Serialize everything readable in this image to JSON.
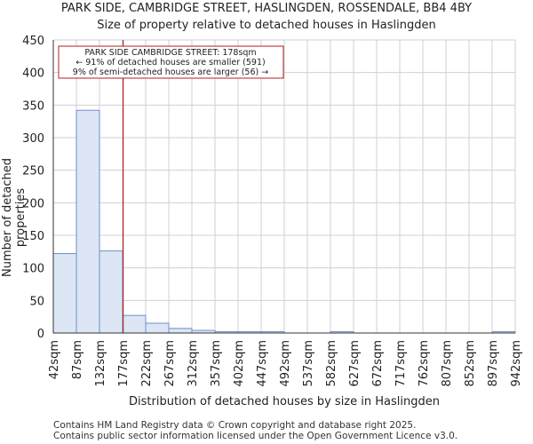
{
  "chart_data": {
    "type": "bar",
    "title": "PARK SIDE, CAMBRIDGE STREET, HASLINGDEN, ROSSENDALE, BB4 4BY",
    "subtitle": "Size of property relative to detached houses in Haslingden",
    "xlabel": "Distribution of detached houses by size in Haslingden",
    "ylabel": "Number of detached properties",
    "ylim": [
      0,
      450
    ],
    "yticks": [
      0,
      50,
      100,
      150,
      200,
      250,
      300,
      350,
      400,
      450
    ],
    "xtick_labels": [
      "42sqm",
      "87sqm",
      "132sqm",
      "177sqm",
      "222sqm",
      "267sqm",
      "312sqm",
      "357sqm",
      "402sqm",
      "447sqm",
      "492sqm",
      "537sqm",
      "582sqm",
      "627sqm",
      "672sqm",
      "717sqm",
      "762sqm",
      "807sqm",
      "852sqm",
      "897sqm",
      "942sqm"
    ],
    "bin_edges": [
      42,
      87,
      132,
      177,
      222,
      267,
      312,
      357,
      402,
      447,
      492,
      537,
      582,
      627,
      672,
      717,
      762,
      807,
      852,
      897,
      942
    ],
    "values": [
      122,
      342,
      126,
      27,
      15,
      7,
      4,
      2,
      2,
      2,
      0,
      0,
      2,
      0,
      0,
      0,
      0,
      0,
      0,
      2
    ],
    "marker_value": 178,
    "annotation": {
      "line1": "PARK SIDE CAMBRIDGE STREET: 178sqm",
      "line2": "← 91% of detached houses are smaller (591)",
      "line3": "9% of semi-detached houses are larger (56) →"
    },
    "colors": {
      "bar_fill": "#dce6f5",
      "bar_stroke": "#6f8fc7",
      "grid": "#d0d0d0",
      "marker": "#b22222"
    }
  },
  "footer": {
    "line1": "Contains HM Land Registry data © Crown copyright and database right 2025.",
    "line2": "Contains public sector information licensed under the Open Government Licence v3.0."
  }
}
